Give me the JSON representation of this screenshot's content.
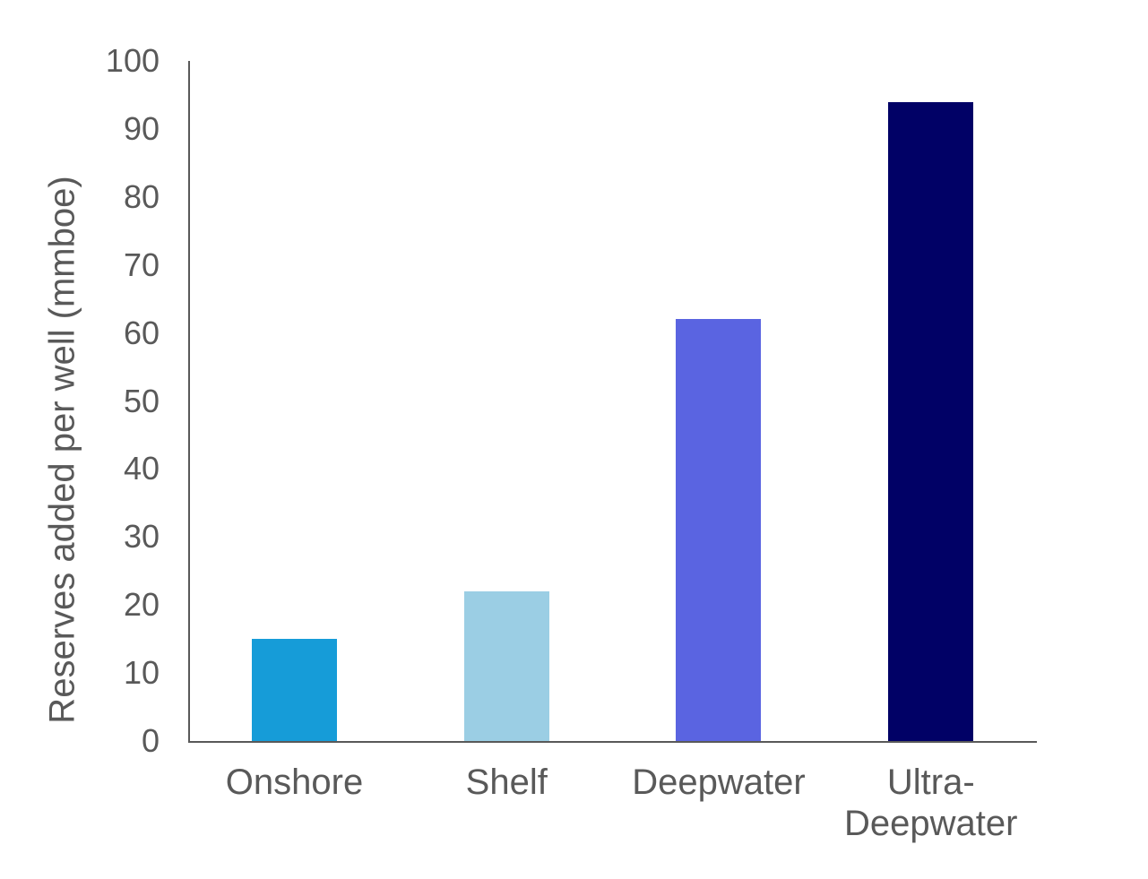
{
  "chart_data": {
    "type": "bar",
    "title": "",
    "xlabel": "",
    "ylabel": "Reserves added per well (mmboe)",
    "categories": [
      "Onshore",
      "Shelf",
      "Deepwater",
      "Ultra-Deepwater"
    ],
    "values": [
      15,
      22,
      62,
      94
    ],
    "ylim": [
      0,
      100
    ],
    "yticks": [
      0,
      10,
      20,
      30,
      40,
      50,
      60,
      70,
      80,
      90,
      100
    ],
    "grid": "off",
    "legend": "none",
    "bar_colors": [
      "#169CD8",
      "#9BCEE4",
      "#5A64E1",
      "#010166"
    ],
    "text_color": "#595959",
    "axis_color": "#595959"
  }
}
